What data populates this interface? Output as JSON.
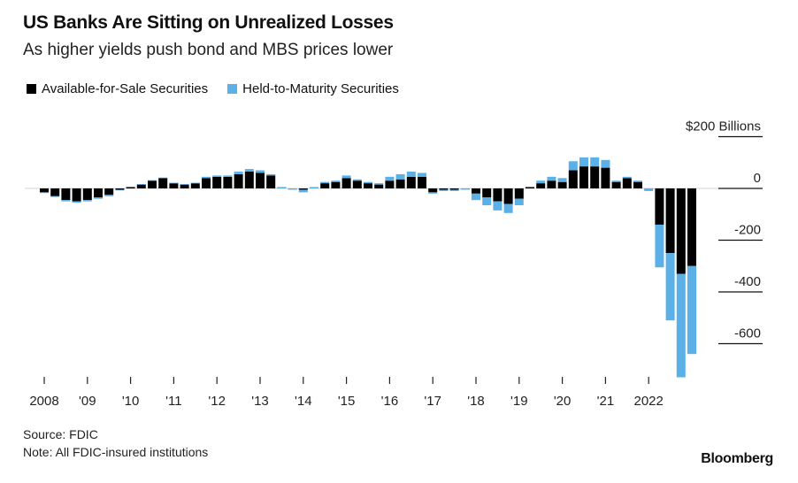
{
  "header": {
    "title": "US Banks Are Sitting on Unrealized Losses",
    "subtitle": "As higher yields push bond and MBS prices lower"
  },
  "legend": [
    {
      "label": "Available-for-Sale Securities",
      "color": "#000000"
    },
    {
      "label": "Held-to-Maturity Securities",
      "color": "#5bb0e8"
    }
  ],
  "footer": {
    "source": "Source: FDIC",
    "note": "Note: All FDIC-insured institutions",
    "brand": "Bloomberg"
  },
  "chart_data": {
    "type": "bar",
    "stacked": true,
    "y_unit_label": "$200 Billions",
    "y_ticks": [
      {
        "value": 200,
        "label": "$200 Billions"
      },
      {
        "value": 0,
        "label": "0"
      },
      {
        "value": -200,
        "label": "-200"
      },
      {
        "value": -400,
        "label": "-400"
      },
      {
        "value": -600,
        "label": "-600"
      }
    ],
    "ylim": [
      -720,
      200
    ],
    "x_ticks": [
      "2008",
      "'09",
      "'10",
      "'11",
      "'12",
      "'13",
      "'14",
      "'15",
      "'16",
      "'17",
      "'18",
      "'19",
      "'20",
      "'21",
      "2022"
    ],
    "x_tick_quarter_index": [
      0,
      4,
      8,
      12,
      16,
      20,
      24,
      28,
      32,
      36,
      40,
      44,
      48,
      52,
      56
    ],
    "grid": false,
    "legend_position": "top-left",
    "series": [
      {
        "name": "Available-for-Sale Securities",
        "color": "#000000",
        "values": [
          -15,
          -30,
          -45,
          -50,
          -45,
          -35,
          -25,
          -5,
          5,
          15,
          30,
          40,
          20,
          15,
          20,
          40,
          45,
          45,
          55,
          65,
          60,
          50,
          5,
          0,
          -5,
          5,
          20,
          25,
          40,
          30,
          20,
          15,
          30,
          35,
          45,
          45,
          -15,
          -5,
          -5,
          0,
          -20,
          -35,
          -50,
          -60,
          -40,
          5,
          20,
          30,
          25,
          70,
          85,
          85,
          80,
          25,
          40,
          25,
          0,
          -140,
          -250,
          -330,
          -300
        ]
      },
      {
        "name": "Held-to-Maturity Securities",
        "color": "#5bb0e8",
        "values": [
          -2,
          -3,
          -5,
          -5,
          -5,
          -5,
          -5,
          -2,
          2,
          2,
          2,
          2,
          2,
          2,
          2,
          5,
          5,
          5,
          10,
          10,
          10,
          5,
          -5,
          -5,
          -10,
          -5,
          5,
          5,
          10,
          5,
          5,
          5,
          15,
          20,
          20,
          15,
          -5,
          -5,
          -5,
          -5,
          -25,
          -30,
          -35,
          -35,
          -25,
          2,
          10,
          15,
          15,
          35,
          35,
          35,
          30,
          5,
          5,
          5,
          -10,
          -165,
          -260,
          -400,
          -340
        ]
      }
    ]
  }
}
